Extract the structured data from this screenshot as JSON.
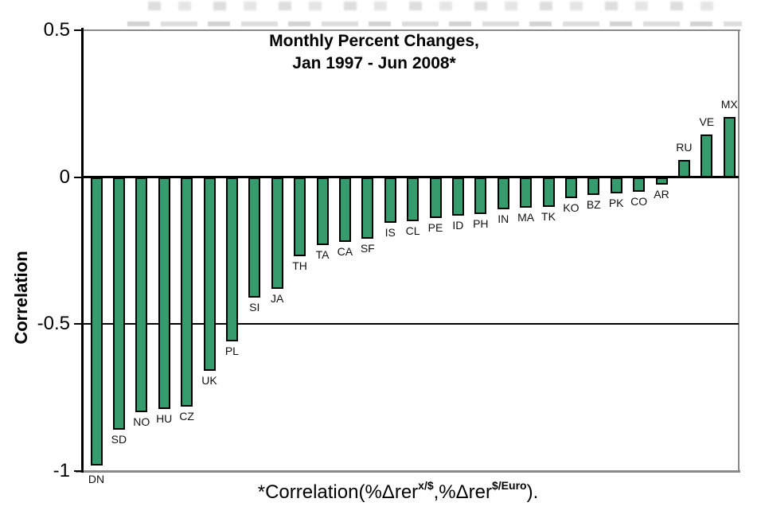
{
  "title": {
    "line1": "Monthly Percent Changes,",
    "line2": "Jan 1997 - Jun 2008*"
  },
  "y_axis_label": "Correlation",
  "footnote": {
    "part1": "*Correlation(%Δrer",
    "sup1": "x/$",
    "part2": ",%Δrer",
    "sup2": "$/Euro",
    "part3": ")."
  },
  "chart_data": {
    "type": "bar",
    "title": "Monthly Percent Changes, Jan 1997 - Jun 2008*",
    "ylabel": "Correlation",
    "ylim": [
      -1,
      0.5
    ],
    "yticks": [
      0.5,
      0,
      -0.5,
      -1
    ],
    "ytick_labels": [
      "0.5",
      "0",
      "-0.5",
      "-1"
    ],
    "gridline_values": [
      0,
      -0.5
    ],
    "grid": "horizontal-only",
    "legend": false,
    "bar_color": "#369c6e",
    "bar_border_color": "#000000",
    "frame_color": "#8a8a8a",
    "label_position": "beyond-bar-end",
    "categories": [
      "DN",
      "SD",
      "NO",
      "HU",
      "CZ",
      "UK",
      "PL",
      "SI",
      "JA",
      "TH",
      "TA",
      "CA",
      "SF",
      "IS",
      "CL",
      "PE",
      "ID",
      "PH",
      "IN",
      "MA",
      "TK",
      "KO",
      "BZ",
      "PK",
      "CO",
      "AR",
      "RU",
      "VE",
      "MX"
    ],
    "values": [
      -0.98,
      -0.86,
      -0.8,
      -0.79,
      -0.78,
      -0.66,
      -0.56,
      -0.41,
      -0.38,
      -0.27,
      -0.23,
      -0.22,
      -0.21,
      -0.155,
      -0.15,
      -0.14,
      -0.13,
      -0.125,
      -0.11,
      -0.105,
      -0.1,
      -0.07,
      -0.06,
      -0.055,
      -0.05,
      -0.025,
      0.06,
      0.145,
      0.205
    ],
    "footnote": "*Correlation(%Δrer^(x/$),%Δrer^($/Euro))."
  }
}
